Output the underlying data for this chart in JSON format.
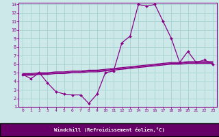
{
  "xlabel": "Windchill (Refroidissement éolien,°C)",
  "background_color": "#cce8e8",
  "grid_color": "#aad4d4",
  "line_color": "#880088",
  "spine_color": "#880088",
  "xlabel_bg": "#660066",
  "xlabel_fg": "#ffffff",
  "xlim": [
    -0.5,
    23.5
  ],
  "ylim": [
    1,
    13.2
  ],
  "xticks": [
    0,
    1,
    2,
    3,
    4,
    5,
    6,
    7,
    8,
    9,
    10,
    11,
    12,
    13,
    14,
    15,
    16,
    17,
    18,
    19,
    20,
    21,
    22,
    23
  ],
  "yticks": [
    1,
    2,
    3,
    4,
    5,
    6,
    7,
    8,
    9,
    10,
    11,
    12,
    13
  ],
  "series1_x": [
    0,
    1,
    2,
    3,
    4,
    5,
    6,
    7,
    8,
    9,
    10,
    11,
    12,
    13,
    14,
    15,
    16,
    17,
    18,
    19,
    20,
    21,
    22,
    23
  ],
  "series1_y": [
    4.8,
    4.3,
    5.0,
    3.8,
    2.8,
    2.5,
    2.4,
    2.4,
    1.4,
    2.5,
    5.0,
    5.2,
    8.5,
    9.3,
    13.0,
    12.8,
    13.0,
    11.0,
    9.0,
    6.2,
    7.5,
    6.2,
    6.5,
    6.0
  ],
  "series2_x": [
    0,
    1,
    2,
    3,
    4,
    5,
    6,
    7,
    8,
    9,
    10,
    11,
    12,
    13,
    14,
    15,
    16,
    17,
    18,
    19,
    20,
    21,
    22,
    23
  ],
  "series2_y": [
    4.7,
    4.7,
    4.8,
    4.8,
    4.9,
    4.9,
    5.0,
    5.0,
    5.1,
    5.1,
    5.2,
    5.3,
    5.4,
    5.5,
    5.6,
    5.7,
    5.8,
    5.9,
    6.0,
    6.0,
    6.1,
    6.1,
    6.1,
    6.1
  ],
  "series3_x": [
    0,
    1,
    2,
    3,
    4,
    5,
    6,
    7,
    8,
    9,
    10,
    11,
    12,
    13,
    14,
    15,
    16,
    17,
    18,
    19,
    20,
    21,
    22,
    23
  ],
  "series3_y": [
    4.8,
    4.8,
    4.9,
    4.9,
    5.0,
    5.0,
    5.1,
    5.1,
    5.2,
    5.2,
    5.3,
    5.4,
    5.5,
    5.6,
    5.7,
    5.8,
    5.9,
    6.0,
    6.1,
    6.1,
    6.2,
    6.2,
    6.2,
    6.2
  ],
  "series4_x": [
    0,
    1,
    2,
    3,
    4,
    5,
    6,
    7,
    8,
    9,
    10,
    11,
    12,
    13,
    14,
    15,
    16,
    17,
    18,
    19,
    20,
    21,
    22,
    23
  ],
  "series4_y": [
    4.9,
    4.9,
    5.0,
    5.0,
    5.1,
    5.1,
    5.2,
    5.2,
    5.3,
    5.3,
    5.4,
    5.5,
    5.6,
    5.7,
    5.8,
    5.9,
    6.0,
    6.1,
    6.2,
    6.2,
    6.3,
    6.3,
    6.3,
    6.3
  ]
}
